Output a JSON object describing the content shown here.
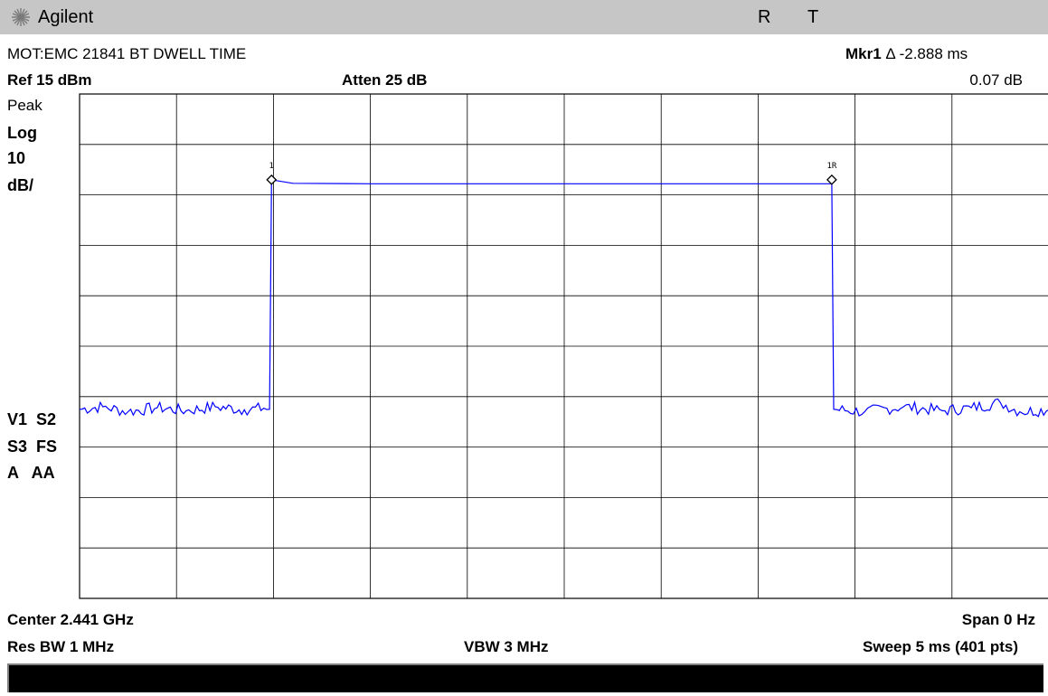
{
  "header": {
    "brand": "Agilent",
    "indicator_r": "R",
    "indicator_t": "T"
  },
  "top": {
    "title": "MOT:EMC 21841 BT DWELL TIME",
    "marker_label": "Mkr1",
    "marker_delta_symbol": "Δ",
    "marker_time": "-2.888 ms",
    "marker_level": "0.07 dB",
    "ref_level": "Ref 15 dBm",
    "atten": "Atten 25 dB"
  },
  "left": {
    "detector": "Peak",
    "scale_type": "Log",
    "scale_value": "10",
    "scale_unit": "dB/",
    "status_line1": "V1  S2",
    "status_line2": "S3  FS",
    "status_line3": "A   AA"
  },
  "bottom": {
    "center": "Center 2.441 GHz",
    "span": "Span 0 Hz",
    "res_bw": "Res BW 1 MHz",
    "vbw": "VBW 3 MHz",
    "sweep": "Sweep 5 ms (401 pts)"
  },
  "chart_data": {
    "type": "line",
    "title": "MOT:EMC 21841 BT DWELL TIME",
    "x_unit": "ms",
    "xlim": [
      0,
      5
    ],
    "ylim": [
      -85,
      15
    ],
    "y_scale": "log 10 dB/div",
    "grid": true,
    "divisions": {
      "x": 10,
      "y": 10
    },
    "series": [
      {
        "color": "#0000ff",
        "points": [
          [
            0.0,
            -47.5
          ],
          [
            0.12,
            -47.0
          ],
          [
            0.25,
            -48.0
          ],
          [
            0.4,
            -47.2
          ],
          [
            0.55,
            -47.8
          ],
          [
            0.7,
            -47.0
          ],
          [
            0.85,
            -47.6
          ],
          [
            0.95,
            -47.3
          ],
          [
            0.98,
            -47.5
          ],
          [
            0.99,
            -2.0
          ],
          [
            1.1,
            -2.7
          ],
          [
            1.5,
            -2.8
          ],
          [
            2.5,
            -2.8
          ],
          [
            3.5,
            -2.8
          ],
          [
            3.88,
            -2.8
          ],
          [
            3.89,
            -47.5
          ],
          [
            4.05,
            -48.0
          ],
          [
            4.25,
            -47.0
          ],
          [
            4.45,
            -47.8
          ],
          [
            4.6,
            -47.2
          ],
          [
            4.75,
            -46.2
          ],
          [
            4.85,
            -48.0
          ],
          [
            5.0,
            -47.6
          ]
        ]
      }
    ],
    "markers": [
      {
        "label": "1",
        "x": 0.99,
        "y": -2.0
      },
      {
        "label": "1R",
        "x": 3.88,
        "y": -2.0
      }
    ]
  }
}
